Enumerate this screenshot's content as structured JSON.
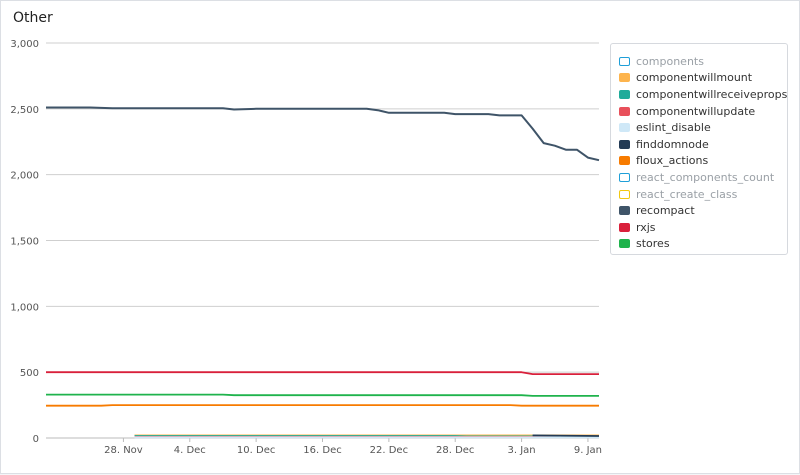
{
  "panel": {
    "title": "Other"
  },
  "chart_data": {
    "type": "line",
    "title": "Other",
    "xlabel": "",
    "ylabel": "",
    "ylim": [
      0,
      3000
    ],
    "yticks": [
      0,
      500,
      1000,
      1500,
      2000,
      2500,
      3000
    ],
    "ytick_labels": [
      "0",
      "500",
      "1,000",
      "1,500",
      "2,000",
      "2,500",
      "3,000"
    ],
    "xlim": [
      "2023-11-21",
      "2024-01-10"
    ],
    "xticks": [
      "2023-11-28",
      "2023-12-04",
      "2023-12-10",
      "2023-12-16",
      "2023-12-22",
      "2023-12-28",
      "2024-01-03",
      "2024-01-09"
    ],
    "xtick_labels": [
      "28. Nov",
      "4. Dec",
      "10. Dec",
      "16. Dec",
      "22. Dec",
      "28. Dec",
      "3. Jan",
      "9. Jan"
    ],
    "grid": "horizontal",
    "legend_position": "top-right",
    "series": [
      {
        "name": "components",
        "color": "#1f9fd8",
        "enabled": false,
        "points": []
      },
      {
        "name": "componentwillmount",
        "color": "#fdb44d",
        "enabled": true,
        "points": [
          [
            "2023-11-29",
            20
          ],
          [
            "2024-01-10",
            20
          ]
        ]
      },
      {
        "name": "componentwillreceiveprops",
        "color": "#1fab9a",
        "enabled": true,
        "points": [
          [
            "2023-11-29",
            15
          ],
          [
            "2023-12-28",
            15
          ],
          [
            "2023-12-29",
            12
          ],
          [
            "2024-01-10",
            12
          ]
        ]
      },
      {
        "name": "componentwillupdate",
        "color": "#e8505b",
        "enabled": true,
        "points": [
          [
            "2023-11-29",
            8
          ],
          [
            "2024-01-10",
            8
          ]
        ]
      },
      {
        "name": "eslint_disable",
        "color": "#cfe8f7",
        "enabled": true,
        "points": [
          [
            "2023-11-29",
            5
          ],
          [
            "2024-01-10",
            5
          ]
        ]
      },
      {
        "name": "finddomnode",
        "color": "#233b55",
        "enabled": true,
        "points": [
          [
            "2024-01-04",
            20
          ],
          [
            "2024-01-10",
            15
          ]
        ]
      },
      {
        "name": "floux_actions",
        "color": "#f77b00",
        "enabled": true,
        "points": [
          [
            "2023-11-21",
            245
          ],
          [
            "2023-11-26",
            245
          ],
          [
            "2023-11-27",
            250
          ],
          [
            "2024-01-02",
            250
          ],
          [
            "2024-01-03",
            245
          ],
          [
            "2024-01-10",
            245
          ]
        ]
      },
      {
        "name": "react_components_count",
        "color": "#1f9fd8",
        "enabled": false,
        "points": []
      },
      {
        "name": "react_create_class",
        "color": "#f2c811",
        "enabled": false,
        "points": []
      },
      {
        "name": "recompact",
        "color": "#3f5468",
        "enabled": true,
        "points": [
          [
            "2023-11-21",
            2510
          ],
          [
            "2023-11-25",
            2510
          ],
          [
            "2023-11-27",
            2505
          ],
          [
            "2023-12-07",
            2505
          ],
          [
            "2023-12-08",
            2495
          ],
          [
            "2023-12-10",
            2500
          ],
          [
            "2023-12-20",
            2500
          ],
          [
            "2023-12-21",
            2490
          ],
          [
            "2023-12-22",
            2470
          ],
          [
            "2023-12-27",
            2470
          ],
          [
            "2023-12-28",
            2460
          ],
          [
            "2023-12-31",
            2460
          ],
          [
            "2024-01-01",
            2450
          ],
          [
            "2024-01-03",
            2450
          ],
          [
            "2024-01-04",
            2350
          ],
          [
            "2024-01-05",
            2240
          ],
          [
            "2024-01-06",
            2220
          ],
          [
            "2024-01-07",
            2190
          ],
          [
            "2024-01-08",
            2190
          ],
          [
            "2024-01-09",
            2130
          ],
          [
            "2024-01-10",
            2110
          ]
        ]
      },
      {
        "name": "rxjs",
        "color": "#d9203b",
        "enabled": true,
        "points": [
          [
            "2023-11-21",
            500
          ],
          [
            "2024-01-03",
            500
          ],
          [
            "2024-01-04",
            485
          ],
          [
            "2024-01-10",
            485
          ]
        ]
      },
      {
        "name": "stores",
        "color": "#1fb34c",
        "enabled": true,
        "points": [
          [
            "2023-11-21",
            330
          ],
          [
            "2023-12-07",
            330
          ],
          [
            "2023-12-08",
            325
          ],
          [
            "2024-01-03",
            325
          ],
          [
            "2024-01-04",
            320
          ],
          [
            "2024-01-10",
            320
          ]
        ]
      }
    ]
  }
}
